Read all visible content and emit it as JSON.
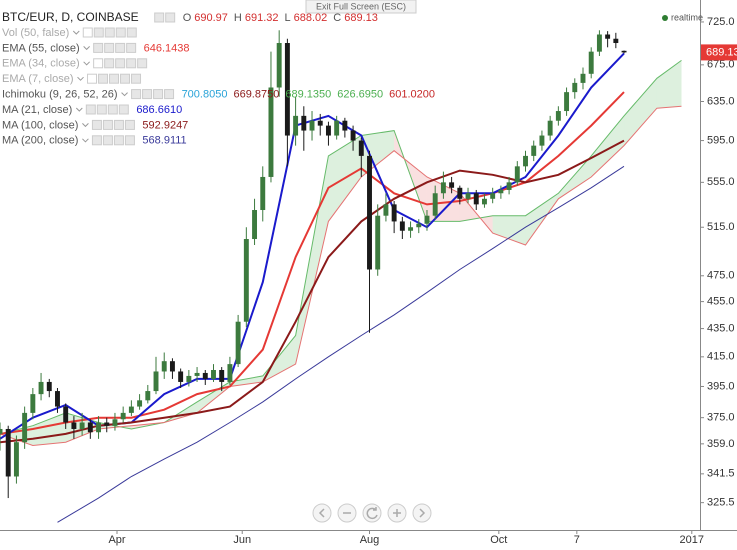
{
  "chart_data": {
    "type": "candlestick",
    "title": "BTC/EUR, D, COINBASE",
    "ohlc_labels": [
      "O",
      "H",
      "L",
      "C"
    ],
    "tooltip": "Exit Full Screen (ESC)",
    "status": "realtime",
    "up_color": "#3c7a3e",
    "down_color": "#1a1a1a",
    "header_value_color": "#d32f2f",
    "last_price_color": "#e53935",
    "log_scale": true,
    "grid": false,
    "ylim": [
      311,
      752
    ],
    "yticks": [
      325.5,
      341.5,
      {
        "value": 359,
        "label": "359.0"
      },
      {
        "value": 375,
        "label": "375.0"
      },
      {
        "value": 395,
        "label": "395.0"
      },
      {
        "value": 415,
        "label": "415.0"
      },
      {
        "value": 435,
        "label": "435.0"
      },
      {
        "value": 455,
        "label": "455.0"
      },
      {
        "value": 475,
        "label": "475.0"
      },
      {
        "value": 515,
        "label": "515.0"
      },
      {
        "value": 555,
        "label": "555.0"
      },
      {
        "value": 595,
        "label": "595.0"
      },
      {
        "value": 635,
        "label": "635.0"
      },
      {
        "value": 675,
        "label": "675.0"
      },
      {
        "value": 725,
        "label": "725.0"
      }
    ],
    "xlim": [
      0,
      341
    ],
    "xticks": [
      {
        "value": 57,
        "label": "Apr"
      },
      {
        "value": 118,
        "label": "Jun"
      },
      {
        "value": 180,
        "label": "Aug"
      },
      {
        "value": 243,
        "label": "Oct"
      },
      {
        "value": 281,
        "label": "7"
      },
      {
        "value": 337,
        "label": "2017"
      }
    ],
    "x": [
      0,
      4,
      8,
      12,
      16,
      20,
      24,
      28,
      32,
      36,
      40,
      44,
      48,
      52,
      56,
      60,
      64,
      68,
      72,
      76,
      80,
      84,
      88,
      92,
      96,
      100,
      104,
      108,
      112,
      116,
      120,
      124,
      128,
      132,
      136,
      140,
      144,
      148,
      152,
      156,
      160,
      164,
      168,
      172,
      176,
      180,
      184,
      188,
      192,
      196,
      200,
      204,
      208,
      212,
      216,
      220,
      224,
      228,
      232,
      236,
      240,
      244,
      248,
      252,
      256,
      260,
      264,
      268,
      272,
      276,
      280,
      284,
      288,
      292,
      296,
      300,
      304
    ],
    "ohlc": [
      [
        365,
        372,
        355,
        368
      ],
      [
        368,
        370,
        328,
        340
      ],
      [
        340,
        364,
        336,
        360
      ],
      [
        360,
        382,
        356,
        378
      ],
      [
        378,
        394,
        374,
        390
      ],
      [
        390,
        404,
        386,
        398
      ],
      [
        398,
        400,
        388,
        392
      ],
      [
        392,
        394,
        378,
        382
      ],
      [
        382,
        384,
        368,
        372
      ],
      [
        372,
        376,
        362,
        368
      ],
      [
        368,
        378,
        364,
        372
      ],
      [
        372,
        374,
        362,
        366
      ],
      [
        366,
        376,
        362,
        372
      ],
      [
        372,
        375,
        366,
        370
      ],
      [
        370,
        378,
        367,
        374
      ],
      [
        374,
        382,
        372,
        378
      ],
      [
        378,
        386,
        376,
        382
      ],
      [
        382,
        390,
        380,
        386
      ],
      [
        386,
        396,
        384,
        392
      ],
      [
        392,
        415,
        390,
        405
      ],
      [
        405,
        418,
        400,
        412
      ],
      [
        412,
        414,
        400,
        405
      ],
      [
        405,
        407,
        394,
        398
      ],
      [
        398,
        406,
        395,
        402
      ],
      [
        402,
        408,
        398,
        404
      ],
      [
        404,
        406,
        396,
        400
      ],
      [
        400,
        410,
        398,
        406
      ],
      [
        406,
        408,
        392,
        398
      ],
      [
        398,
        415,
        396,
        410
      ],
      [
        410,
        445,
        408,
        440
      ],
      [
        440,
        515,
        436,
        505
      ],
      [
        505,
        540,
        500,
        530
      ],
      [
        530,
        570,
        520,
        560
      ],
      [
        560,
        690,
        555,
        650
      ],
      [
        650,
        715,
        640,
        700
      ],
      [
        700,
        705,
        570,
        600
      ],
      [
        600,
        640,
        590,
        620
      ],
      [
        620,
        630,
        585,
        605
      ],
      [
        605,
        625,
        595,
        615
      ],
      [
        615,
        622,
        600,
        610
      ],
      [
        610,
        614,
        590,
        600
      ],
      [
        600,
        620,
        596,
        615
      ],
      [
        615,
        618,
        598,
        605
      ],
      [
        605,
        610,
        585,
        595
      ],
      [
        595,
        598,
        560,
        580
      ],
      [
        580,
        585,
        432,
        480
      ],
      [
        480,
        535,
        475,
        525
      ],
      [
        525,
        545,
        520,
        535
      ],
      [
        535,
        538,
        510,
        520
      ],
      [
        520,
        524,
        505,
        512
      ],
      [
        512,
        520,
        506,
        515
      ],
      [
        515,
        522,
        510,
        518
      ],
      [
        518,
        530,
        512,
        525
      ],
      [
        525,
        552,
        522,
        545
      ],
      [
        545,
        565,
        540,
        555
      ],
      [
        555,
        560,
        545,
        550
      ],
      [
        550,
        552,
        535,
        540
      ],
      [
        540,
        550,
        536,
        545
      ],
      [
        545,
        548,
        530,
        535
      ],
      [
        535,
        545,
        532,
        540
      ],
      [
        540,
        550,
        536,
        545
      ],
      [
        545,
        552,
        540,
        548
      ],
      [
        548,
        560,
        544,
        555
      ],
      [
        555,
        575,
        552,
        570
      ],
      [
        570,
        585,
        565,
        580
      ],
      [
        580,
        595,
        575,
        590
      ],
      [
        590,
        605,
        585,
        600
      ],
      [
        600,
        620,
        595,
        615
      ],
      [
        615,
        630,
        610,
        625
      ],
      [
        625,
        650,
        620,
        645
      ],
      [
        645,
        660,
        638,
        655
      ],
      [
        655,
        672,
        648,
        665
      ],
      [
        665,
        695,
        660,
        690
      ],
      [
        690,
        715,
        685,
        710
      ],
      [
        710,
        714,
        695,
        705
      ],
      [
        705,
        712,
        694,
        700
      ],
      [
        690.97,
        691.32,
        688.02,
        689.13
      ]
    ],
    "indicators": [
      {
        "label": "Vol (50, false)",
        "hidden": true
      },
      {
        "label": "EMA (55, close)",
        "readout": [
          "646.1438"
        ],
        "color": "#e53935",
        "line": {
          "width": 2,
          "x": [
            0,
            16,
            32,
            48,
            64,
            80,
            96,
            112,
            128,
            144,
            160,
            176,
            192,
            208,
            224,
            240,
            256,
            272,
            288,
            304
          ],
          "values": [
            365,
            368,
            372,
            375,
            375,
            380,
            390,
            395,
            420,
            490,
            550,
            568,
            545,
            535,
            538,
            545,
            555,
            580,
            610,
            645
          ]
        }
      },
      {
        "label": "EMA (34, close)",
        "hidden": true
      },
      {
        "label": "EMA (7, close)",
        "hidden": true
      },
      {
        "label": "Ichimoku (9, 26, 52, 26)",
        "readout": [
          "700.8050",
          "669.8750",
          "689.1350",
          "626.6950",
          "601.0200"
        ],
        "readout_colors": [
          "#29a3d8",
          "#8b1a1a",
          "#4caf50",
          "#4caf50",
          "#c62828"
        ]
      },
      {
        "label": "MA (21, close)",
        "readout": [
          "686.6610"
        ],
        "color": "#1a1acc",
        "line": {
          "width": 2,
          "x": [
            0,
            16,
            32,
            48,
            64,
            80,
            96,
            112,
            128,
            144,
            160,
            176,
            192,
            208,
            224,
            240,
            256,
            272,
            288,
            304
          ],
          "values": [
            362,
            375,
            383,
            370,
            372,
            390,
            400,
            400,
            470,
            610,
            620,
            600,
            530,
            515,
            545,
            545,
            560,
            600,
            650,
            688
          ]
        }
      },
      {
        "label": "MA (100, close)",
        "readout": [
          "592.9247"
        ],
        "color": "#8b1a1a",
        "line": {
          "width": 2,
          "x": [
            0,
            16,
            32,
            48,
            64,
            80,
            96,
            112,
            128,
            144,
            160,
            176,
            192,
            208,
            224,
            240,
            256,
            272,
            288,
            304
          ],
          "values": [
            360,
            362,
            365,
            370,
            372,
            375,
            378,
            382,
            398,
            440,
            490,
            520,
            540,
            555,
            566,
            562,
            555,
            562,
            578,
            595
          ]
        }
      },
      {
        "label": "MA (200, close)",
        "readout": [
          "568.9111"
        ],
        "color": "#3a3a9a",
        "line": {
          "width": 1,
          "x": [
            28,
            48,
            64,
            80,
            96,
            112,
            128,
            144,
            160,
            176,
            192,
            208,
            224,
            240,
            256,
            272,
            288,
            304
          ],
          "values": [
            315,
            328,
            340,
            350,
            360,
            372,
            385,
            400,
            415,
            430,
            445,
            462,
            480,
            497,
            515,
            532,
            550,
            570
          ]
        }
      }
    ],
    "cloud": {
      "x": [
        0,
        16,
        32,
        48,
        64,
        80,
        96,
        112,
        128,
        144,
        160,
        176,
        192,
        208,
        224,
        240,
        256,
        272,
        288,
        304,
        320,
        332
      ],
      "span_a": {
        "color": "#66bb6a",
        "values": [
          365,
          370,
          378,
          372,
          368,
          372,
          385,
          398,
          402,
          430,
          580,
          600,
          605,
          520,
          520,
          525,
          525,
          545,
          580,
          620,
          660,
          680
        ]
      },
      "span_b": {
        "color": "#e57373",
        "values": [
          365,
          358,
          360,
          368,
          370,
          372,
          378,
          395,
          398,
          410,
          520,
          560,
          585,
          560,
          545,
          510,
          500,
          540,
          560,
          590,
          628,
          630
        ]
      },
      "up_fill": "rgba(102,187,106,0.22)",
      "down_fill": "rgba(229,115,115,0.22)"
    }
  }
}
